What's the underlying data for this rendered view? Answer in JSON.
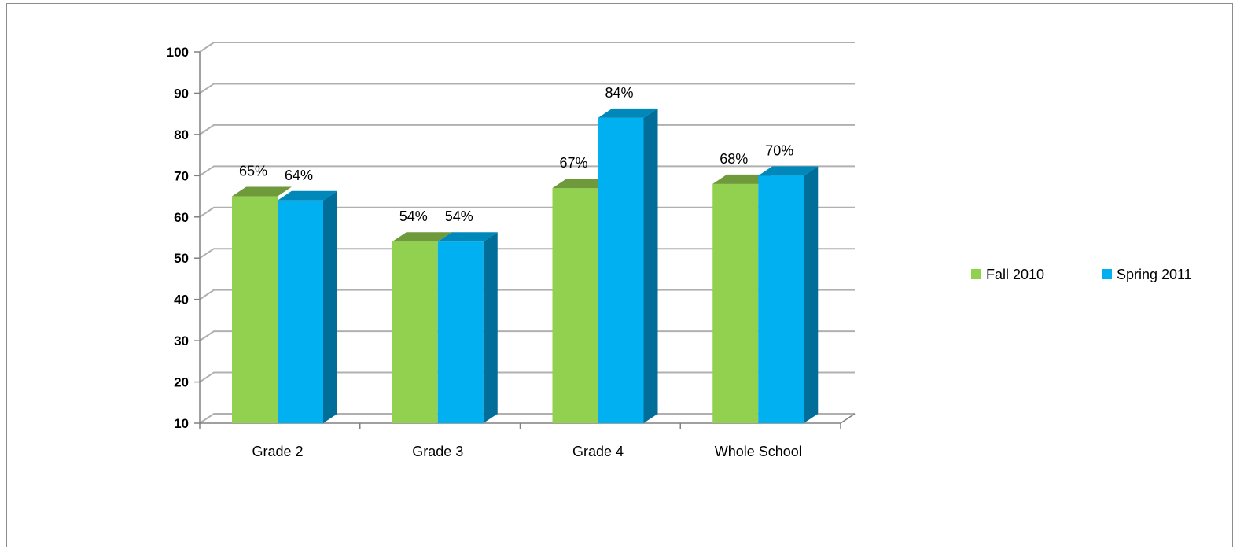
{
  "chart_data": {
    "type": "bar",
    "title": "",
    "xlabel": "",
    "ylabel": "",
    "categories": [
      "Grade 2",
      "Grade 3",
      "Grade 4",
      "Whole School"
    ],
    "series": [
      {
        "name": "Fall 2010",
        "values": [
          65,
          54,
          67,
          68
        ],
        "labels": [
          "65%",
          "54%",
          "67%",
          "68%"
        ],
        "color": "#92d050",
        "top_color": "#6e9a3c",
        "side_color": "#5f8a2f"
      },
      {
        "name": "Spring 2011",
        "values": [
          64,
          54,
          84,
          70
        ],
        "labels": [
          "64%",
          "54%",
          "84%",
          "70%"
        ],
        "color": "#00b0f0",
        "top_color": "#0088bb",
        "side_color": "#006e99"
      }
    ],
    "ylim": [
      10,
      100
    ],
    "yticks": [
      "10",
      "20",
      "30",
      "40",
      "50",
      "60",
      "70",
      "80",
      "90",
      "100"
    ],
    "grid": true,
    "three_d": true,
    "legend_position": "right"
  }
}
